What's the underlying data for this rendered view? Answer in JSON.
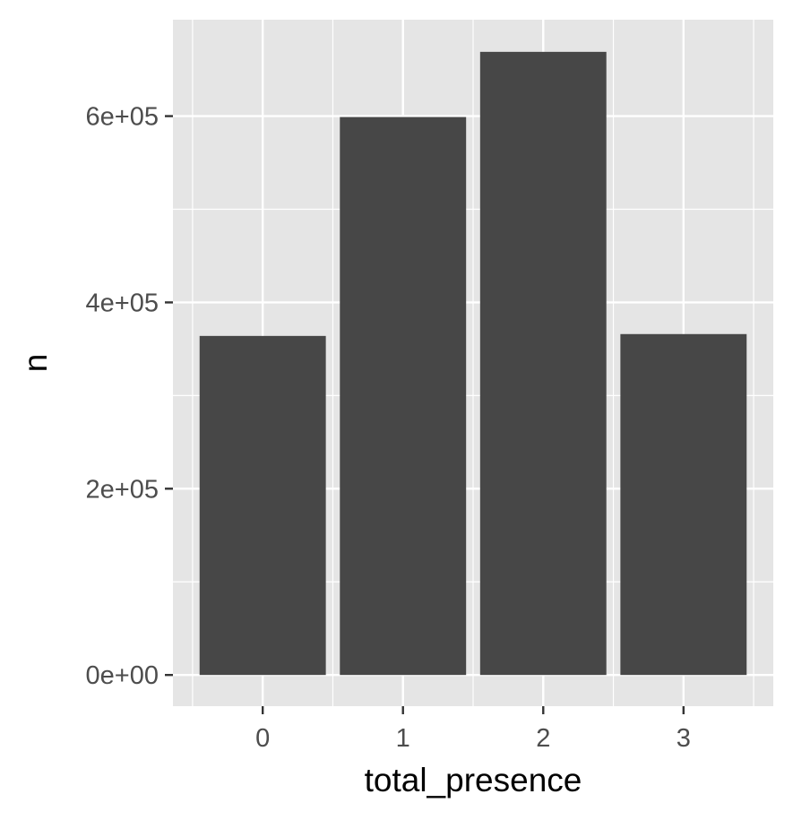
{
  "chart_data": {
    "type": "bar",
    "title": "",
    "xlabel": "total_presence",
    "ylabel": "n",
    "categories": [
      "0",
      "1",
      "2",
      "3"
    ],
    "values": [
      364000,
      599000,
      669000,
      366000
    ],
    "ylim": [
      -33500,
      703500
    ],
    "xlim": [
      -0.64,
      3.64
    ],
    "y_ticks": [
      0,
      200000,
      400000,
      600000
    ],
    "y_tick_labels": [
      "0e+00",
      "2e+05",
      "4e+05",
      "6e+05"
    ],
    "y_minor_ticks": [
      100000,
      300000,
      500000
    ],
    "x_ticks": [
      0,
      1,
      2,
      3
    ],
    "bar_width": 0.9,
    "grid": true,
    "legend": "none",
    "colors": {
      "panel_background": "#e5e5e5",
      "grid": "#ffffff",
      "bar_fill": "#474747",
      "tick_mark": "#333333",
      "tick_text": "#4d4d4d",
      "axis_title": "#000000"
    }
  }
}
